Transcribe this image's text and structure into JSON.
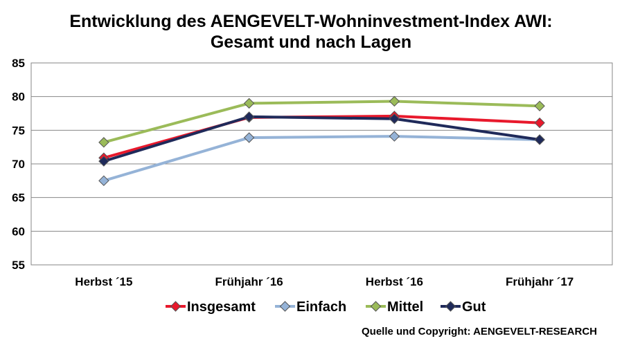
{
  "chart_data": {
    "type": "line",
    "title": "Entwicklung des AENGEVELT-Wohninvestment-Index AWI:",
    "subtitle": "Gesamt und nach Lagen",
    "categories": [
      "Herbst ´15",
      "Frühjahr ´16",
      "Herbst ´16",
      "Frühjahr ´17"
    ],
    "ylim": [
      55,
      85
    ],
    "yticks": [
      55,
      60,
      65,
      70,
      75,
      80,
      85
    ],
    "grid": true,
    "legend_position": "bottom",
    "series": [
      {
        "name": "Einfach",
        "color": "#95B3D7",
        "marker": "diamond",
        "values": [
          67.5,
          73.9,
          74.1,
          73.6
        ]
      },
      {
        "name": "Insgesamt",
        "color": "#E8192C",
        "marker": "diamond",
        "values": [
          70.9,
          76.9,
          77.1,
          76.1
        ]
      },
      {
        "name": "Mittel",
        "color": "#9BBB59",
        "marker": "diamond",
        "values": [
          73.2,
          79.0,
          79.3,
          78.6
        ]
      },
      {
        "name": "Gut",
        "color": "#1F2A5A",
        "marker": "diamond",
        "values": [
          70.4,
          77.0,
          76.7,
          73.6
        ]
      }
    ],
    "legend_order": [
      "Insgesamt",
      "Einfach",
      "Mittel",
      "Gut"
    ],
    "source": "Quelle und Copyright: AENGEVELT-RESEARCH"
  }
}
